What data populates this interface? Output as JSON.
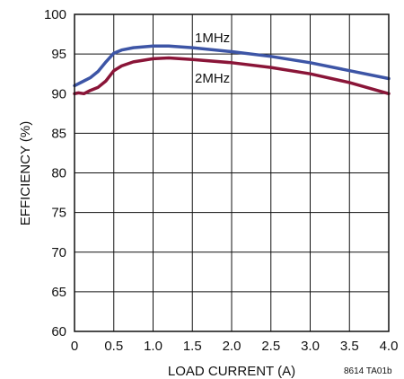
{
  "chart_data": {
    "type": "line",
    "title": "",
    "xlabel": "LOAD CURRENT (A)",
    "ylabel": "EFFICIENCY (%)",
    "xlim": [
      0,
      4.0
    ],
    "ylim": [
      60,
      100
    ],
    "xticks": [
      "0",
      "0.5",
      "1.0",
      "1.5",
      "2.0",
      "2.5",
      "3.0",
      "3.5",
      "4.0"
    ],
    "yticks": [
      "60",
      "65",
      "70",
      "75",
      "80",
      "85",
      "90",
      "95",
      "100"
    ],
    "grid": true,
    "figure_id": "8614 TA01b",
    "series": [
      {
        "name": "1MHz",
        "color": "#3d55a6",
        "points": [
          [
            0,
            91.0
          ],
          [
            0.1,
            91.5
          ],
          [
            0.2,
            92.0
          ],
          [
            0.3,
            92.8
          ],
          [
            0.4,
            94.0
          ],
          [
            0.5,
            95.1
          ],
          [
            0.6,
            95.5
          ],
          [
            0.75,
            95.8
          ],
          [
            1.0,
            96.0
          ],
          [
            1.2,
            96.0
          ],
          [
            1.5,
            95.8
          ],
          [
            2.0,
            95.3
          ],
          [
            2.5,
            94.7
          ],
          [
            3.0,
            93.9
          ],
          [
            3.5,
            92.9
          ],
          [
            4.0,
            91.9
          ]
        ]
      },
      {
        "name": "2MHz",
        "color": "#8a1538",
        "points": [
          [
            0,
            90.0
          ],
          [
            0.05,
            90.1
          ],
          [
            0.12,
            90.0
          ],
          [
            0.2,
            90.4
          ],
          [
            0.3,
            90.8
          ],
          [
            0.4,
            91.6
          ],
          [
            0.5,
            92.9
          ],
          [
            0.6,
            93.5
          ],
          [
            0.75,
            94.0
          ],
          [
            1.0,
            94.4
          ],
          [
            1.2,
            94.5
          ],
          [
            1.5,
            94.3
          ],
          [
            2.0,
            93.9
          ],
          [
            2.5,
            93.3
          ],
          [
            3.0,
            92.5
          ],
          [
            3.5,
            91.4
          ],
          [
            4.0,
            90.0
          ]
        ]
      }
    ]
  }
}
